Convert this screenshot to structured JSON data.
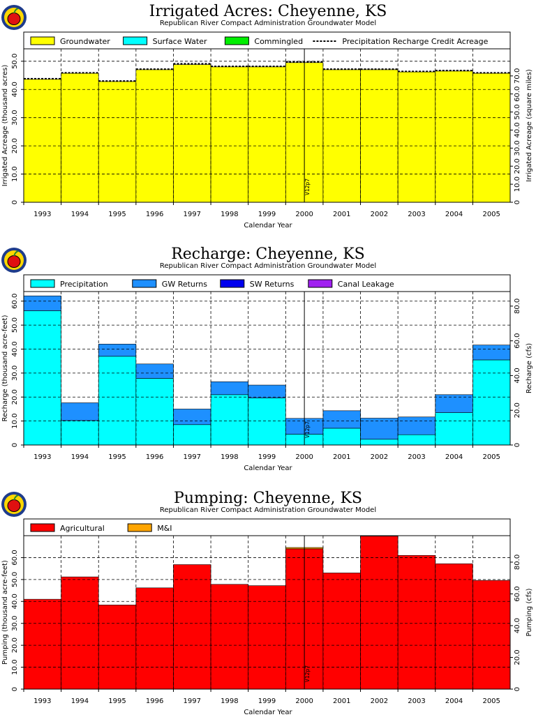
{
  "chart_data": [
    {
      "id": "irrigated",
      "type": "bar",
      "title": "Irrigated Acres: Cheyenne, KS",
      "subtitle": "Republican River Compact Administration Groundwater Model",
      "xlabel": "Calendar Year",
      "ylabel": "Irrigated Acreage (thousand acres)",
      "y2label": "Irrigated Acreage (square miles)",
      "categories": [
        "1993",
        "1994",
        "1995",
        "1996",
        "1997",
        "1998",
        "1999",
        "2000",
        "2001",
        "2002",
        "2003",
        "2004",
        "2005"
      ],
      "ylim": [
        0,
        54.4
      ],
      "y_ticks": [
        10,
        20,
        30,
        40,
        50
      ],
      "y_tick_labels": [
        "10.0",
        "20.0",
        "30.0",
        "40.0",
        "50.0"
      ],
      "y2_ratio": 1.5625,
      "y2_ticks": [
        10,
        20,
        30,
        40,
        50,
        60,
        70
      ],
      "y2_tick_labels": [
        "10.0",
        "20.0",
        "30.0",
        "40.0",
        "50.0",
        "60.0",
        "70.0"
      ],
      "series": [
        {
          "name": "Groundwater",
          "color": "#ffff00",
          "values": [
            43.6,
            45.7,
            42.8,
            47.0,
            48.8,
            48.0,
            48.0,
            49.5,
            47.0,
            47.0,
            46.2,
            46.5,
            45.7
          ]
        },
        {
          "name": "Surface Water",
          "color": "#00ffff",
          "values": [
            0,
            0,
            0,
            0,
            0,
            0,
            0,
            0,
            0,
            0,
            0,
            0,
            0
          ]
        },
        {
          "name": "Commingled",
          "color": "#00ee00",
          "values": [
            0,
            0,
            0,
            0,
            0,
            0,
            0,
            0,
            0,
            0,
            0,
            0,
            0
          ]
        }
      ],
      "line_series": {
        "name": "Precipitation Recharge Credit Acreage",
        "style": "dotted",
        "values": [
          43.8,
          45.9,
          43.0,
          47.2,
          49.1,
          48.2,
          48.2,
          49.8,
          47.2,
          47.2,
          46.4,
          46.7,
          45.9
        ]
      },
      "run_label": "V12p7",
      "run_label_year_index": 7,
      "grid": true,
      "legend_position": "top"
    },
    {
      "id": "recharge",
      "type": "bar",
      "title": "Recharge: Cheyenne, KS",
      "subtitle": "Republican River Compact Administration Groundwater Model",
      "xlabel": "Calendar Year",
      "ylabel": "Recharge (thousand acre-feet)",
      "y2label": "Recharge (cfs)",
      "categories": [
        "1993",
        "1994",
        "1995",
        "1996",
        "1997",
        "1998",
        "1999",
        "2000",
        "2001",
        "2002",
        "2003",
        "2004",
        "2005"
      ],
      "ylim": [
        0,
        64.0
      ],
      "y_ticks": [
        10,
        20,
        30,
        40,
        50,
        60
      ],
      "y_tick_labels": [
        "10.0",
        "20.0",
        "30.0",
        "40.0",
        "50.0",
        "60.0"
      ],
      "y2_ratio": 1.381,
      "y2_ticks": [
        20,
        40,
        60,
        80
      ],
      "y2_tick_labels": [
        "20.0",
        "40.0",
        "60.0",
        "80.0"
      ],
      "series": [
        {
          "name": "Precipitation",
          "color": "#00ffff",
          "values": [
            56.0,
            10.2,
            37.0,
            27.8,
            8.5,
            21.0,
            19.6,
            4.5,
            7.0,
            2.4,
            4.3,
            13.5,
            35.5
          ]
        },
        {
          "name": "GW Returns",
          "color": "#1e90ff",
          "values": [
            6.2,
            7.4,
            5.1,
            6.0,
            6.5,
            5.4,
            5.4,
            6.6,
            7.3,
            8.8,
            7.4,
            7.5,
            6.2
          ]
        },
        {
          "name": "SW Returns",
          "color": "#0000ee",
          "values": [
            0,
            0,
            0,
            0,
            0,
            0,
            0,
            0,
            0,
            0,
            0,
            0,
            0
          ]
        },
        {
          "name": "Canal Leakage",
          "color": "#a020f0",
          "values": [
            0,
            0,
            0,
            0,
            0,
            0,
            0,
            0,
            0,
            0,
            0,
            0,
            0
          ]
        }
      ],
      "run_label": "V12p7",
      "run_label_year_index": 7,
      "grid": true,
      "legend_position": "top"
    },
    {
      "id": "pumping",
      "type": "bar",
      "title": "Pumping: Cheyenne, KS",
      "subtitle": "Republican River Compact Administration Groundwater Model",
      "xlabel": "Calendar Year",
      "ylabel": "Pumping (thousand acre-feet)",
      "y2label": "Pumping (cfs)",
      "categories": [
        "1993",
        "1994",
        "1995",
        "1996",
        "1997",
        "1998",
        "1999",
        "2000",
        "2001",
        "2002",
        "2003",
        "2004",
        "2005"
      ],
      "ylim": [
        0,
        70.0
      ],
      "y_ticks": [
        10,
        20,
        30,
        40,
        50,
        60
      ],
      "y_tick_labels": [
        "10.0",
        "20.0",
        "30.0",
        "40.0",
        "50.0",
        "60.0"
      ],
      "y2_ratio": 1.381,
      "y2_ticks": [
        20,
        40,
        60,
        80
      ],
      "y2_tick_labels": [
        "20.0",
        "40.0",
        "60.0",
        "80.0"
      ],
      "series": [
        {
          "name": "Agricultural",
          "color": "#ff0000",
          "values": [
            41.0,
            51.2,
            38.4,
            46.2,
            56.8,
            47.8,
            47.2,
            64.0,
            53.0,
            69.8,
            61.0,
            57.2,
            49.6
          ]
        },
        {
          "name": "M&I",
          "color": "#ffa500",
          "values": [
            0,
            0,
            0,
            0,
            0,
            0,
            0,
            0.6,
            0,
            0,
            0,
            0,
            0
          ]
        }
      ],
      "run_label": "V12p7",
      "run_label_year_index": 7,
      "grid": true,
      "legend_position": "top"
    }
  ]
}
